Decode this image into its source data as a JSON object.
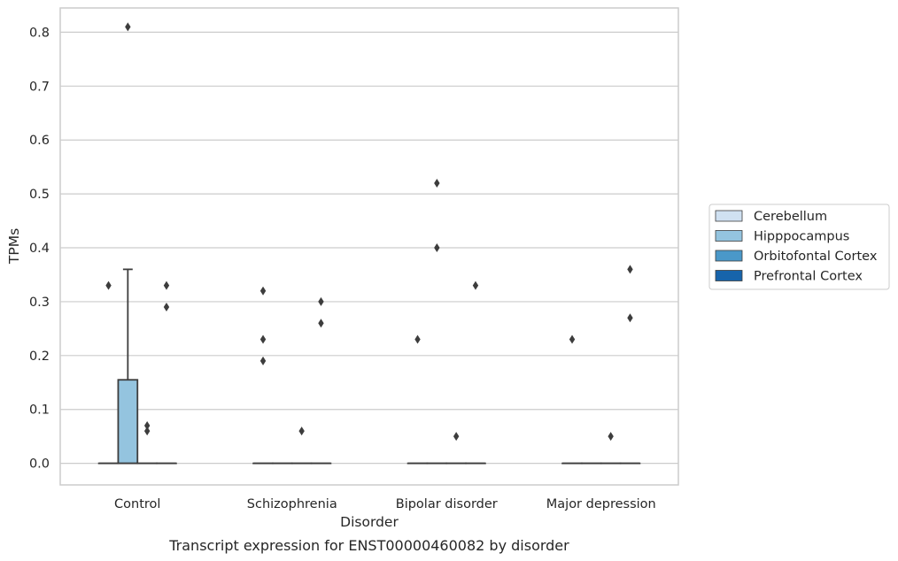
{
  "chart_data": {
    "type": "box",
    "xlabel": "Disorder",
    "ylabel": "TPMs",
    "caption": "Transcript expression for ENST00000460082 by disorder",
    "ylim": [
      -0.04,
      0.845
    ],
    "y_ticks": [
      "0.0",
      "0.1",
      "0.2",
      "0.3",
      "0.4",
      "0.5",
      "0.6",
      "0.7",
      "0.8"
    ],
    "grid": true,
    "legend_position": "right",
    "categories": [
      "Control",
      "Schizophrenia",
      "Bipolar disorder",
      "Major depression"
    ],
    "series": [
      {
        "name": "Cerebellum",
        "color": "#d0e1f2",
        "boxes": [
          {
            "q1": 0,
            "median": 0,
            "q3": 0,
            "whisker_low": 0,
            "whisker_high": 0,
            "outliers": [
              0.33
            ]
          },
          {
            "q1": 0,
            "median": 0,
            "q3": 0,
            "whisker_low": 0,
            "whisker_high": 0,
            "outliers": [
              0.32,
              0.23,
              0.19
            ]
          },
          {
            "q1": 0,
            "median": 0,
            "q3": 0,
            "whisker_low": 0,
            "whisker_high": 0,
            "outliers": [
              0.23
            ]
          },
          {
            "q1": 0,
            "median": 0,
            "q3": 0,
            "whisker_low": 0,
            "whisker_high": 0,
            "outliers": [
              0.23
            ]
          }
        ]
      },
      {
        "name": "Hipppocampus",
        "color": "#94c4df",
        "boxes": [
          {
            "q1": 0,
            "median": 0,
            "q3": 0.155,
            "whisker_low": 0,
            "whisker_high": 0.36,
            "outliers": [
              0.81
            ]
          },
          {
            "q1": 0,
            "median": 0,
            "q3": 0,
            "whisker_low": 0,
            "whisker_high": 0,
            "outliers": []
          },
          {
            "q1": 0,
            "median": 0,
            "q3": 0,
            "whisker_low": 0,
            "whisker_high": 0,
            "outliers": [
              0.52,
              0.4
            ]
          },
          {
            "q1": 0,
            "median": 0,
            "q3": 0,
            "whisker_low": 0,
            "whisker_high": 0,
            "outliers": []
          }
        ]
      },
      {
        "name": "Orbitofontal Cortex",
        "color": "#4a98c9",
        "boxes": [
          {
            "q1": 0,
            "median": 0,
            "q3": 0,
            "whisker_low": 0,
            "whisker_high": 0,
            "outliers": [
              0.07,
              0.06
            ]
          },
          {
            "q1": 0,
            "median": 0,
            "q3": 0,
            "whisker_low": 0,
            "whisker_high": 0,
            "outliers": [
              0.06
            ]
          },
          {
            "q1": 0,
            "median": 0,
            "q3": 0,
            "whisker_low": 0,
            "whisker_high": 0,
            "outliers": [
              0.05
            ]
          },
          {
            "q1": 0,
            "median": 0,
            "q3": 0,
            "whisker_low": 0,
            "whisker_high": 0,
            "outliers": [
              0.05
            ]
          }
        ]
      },
      {
        "name": "Prefrontal Cortex",
        "color": "#1764ab",
        "boxes": [
          {
            "q1": 0,
            "median": 0,
            "q3": 0,
            "whisker_low": 0,
            "whisker_high": 0,
            "outliers": [
              0.33,
              0.29
            ]
          },
          {
            "q1": 0,
            "median": 0,
            "q3": 0,
            "whisker_low": 0,
            "whisker_high": 0,
            "outliers": [
              0.3,
              0.26
            ]
          },
          {
            "q1": 0,
            "median": 0,
            "q3": 0,
            "whisker_low": 0,
            "whisker_high": 0,
            "outliers": [
              0.33
            ]
          },
          {
            "q1": 0,
            "median": 0,
            "q3": 0,
            "whisker_low": 0,
            "whisker_high": 0,
            "outliers": [
              0.36,
              0.27
            ]
          }
        ]
      }
    ]
  }
}
